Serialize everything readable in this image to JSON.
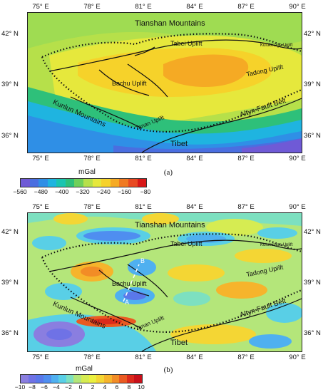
{
  "map_a": {
    "caption": "(a)",
    "lon_ticks": [
      "75° E",
      "78° E",
      "81° E",
      "84° E",
      "87° E",
      "90° E"
    ],
    "lat_ticks": [
      "42° N",
      "39° N",
      "36° N"
    ],
    "labels": {
      "tianshan": "Tianshan Mountains",
      "tabei": "Tabei Uplift",
      "kuluketage": "Kuluketage Uplift",
      "tadong": "Tadong Uplift",
      "bachu": "Bachu Uplift",
      "tanan": "Tanan Uplift",
      "altyn": "Altyn Fault Belt",
      "kunlun": "Kunlun Mountains",
      "tibet": "Tibet"
    },
    "colorbar": {
      "title": "mGal",
      "ticks": [
        "−560",
        "−480",
        "−400",
        "−320",
        "−240",
        "−160",
        "−80"
      ],
      "colors": [
        "#6f5ad6",
        "#4a6ee0",
        "#2f8fe6",
        "#1fb4e0",
        "#1bc4b0",
        "#2ec07a",
        "#6fd05a",
        "#b6e04a",
        "#e6e83c",
        "#f6d22a",
        "#f5aa24",
        "#f07a22",
        "#e84a22",
        "#d81818"
      ]
    }
  },
  "map_b": {
    "caption": "(b)",
    "lon_ticks": [
      "75° E",
      "78° E",
      "81° E",
      "84° E",
      "87° E",
      "90° E"
    ],
    "lat_ticks": [
      "42° N",
      "39° N",
      "36° N"
    ],
    "labels": {
      "tianshan": "Tianshan Mountains",
      "tabei": "Tabei Uplift",
      "kuluketage": "Kuluketage Uplift",
      "tadong": "Tadong Uplift",
      "bachu": "Bachu Uplift",
      "tanan": "Tanan Uplift",
      "altyn": "Altyn Fault Belt",
      "kunlun": "Kunlun Mountains",
      "tibet": "Tibet",
      "point_a": "A",
      "point_b": "B"
    },
    "colorbar": {
      "title": "mGal",
      "ticks": [
        "−10",
        "−8",
        "−6",
        "−4",
        "−2",
        "0",
        "2",
        "4",
        "6",
        "8",
        "10"
      ],
      "colors": [
        "#8a7ee0",
        "#6f72e6",
        "#5a78ea",
        "#4f8ef0",
        "#4fb0f0",
        "#59cfe6",
        "#7de0c0",
        "#b4e67a",
        "#d6ec52",
        "#eaf040",
        "#f4d634",
        "#f6b42c",
        "#f28c26",
        "#ea5a22",
        "#dc2a1c",
        "#c8101a"
      ]
    }
  }
}
